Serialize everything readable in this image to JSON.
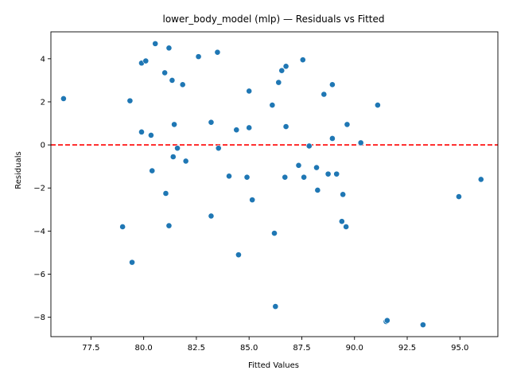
{
  "chart_data": {
    "type": "scatter",
    "title": "lower_body_model (mlp) — Residuals vs Fitted",
    "xlabel": "Fitted Values",
    "ylabel": "Residuals",
    "xlim": [
      75.6,
      96.8
    ],
    "ylim": [
      -8.9,
      5.25
    ],
    "xticks": [
      77.5,
      80.0,
      82.5,
      85.0,
      87.5,
      90.0,
      92.5,
      95.0
    ],
    "xtick_labels": [
      "77.5",
      "80.0",
      "82.5",
      "85.0",
      "87.5",
      "90.0",
      "92.5",
      "95.0"
    ],
    "yticks": [
      -8,
      -6,
      -4,
      -2,
      0,
      2,
      4
    ],
    "ytick_labels": [
      "−8",
      "−6",
      "−4",
      "−2",
      "0",
      "2",
      "4"
    ],
    "reference_line": {
      "y": 0,
      "color": "#ff0000",
      "style": "dashed"
    },
    "grid": false,
    "point_color": "#1f77b4",
    "points": [
      {
        "x": 76.2,
        "y": 2.15
      },
      {
        "x": 79.0,
        "y": -3.8
      },
      {
        "x": 79.35,
        "y": 2.05
      },
      {
        "x": 79.45,
        "y": -5.45
      },
      {
        "x": 79.9,
        "y": 3.8
      },
      {
        "x": 80.1,
        "y": 3.9
      },
      {
        "x": 79.9,
        "y": 0.6
      },
      {
        "x": 80.35,
        "y": 0.45
      },
      {
        "x": 80.4,
        "y": -1.2
      },
      {
        "x": 80.55,
        "y": 4.7
      },
      {
        "x": 81.0,
        "y": 3.35
      },
      {
        "x": 81.05,
        "y": -2.25
      },
      {
        "x": 81.2,
        "y": 4.5
      },
      {
        "x": 81.2,
        "y": -3.75
      },
      {
        "x": 81.35,
        "y": 3.0
      },
      {
        "x": 81.4,
        "y": -0.55
      },
      {
        "x": 81.45,
        "y": 0.95
      },
      {
        "x": 81.6,
        "y": -0.15
      },
      {
        "x": 81.85,
        "y": 2.8
      },
      {
        "x": 82.0,
        "y": -0.75
      },
      {
        "x": 82.6,
        "y": 4.1
      },
      {
        "x": 83.2,
        "y": 1.05
      },
      {
        "x": 83.2,
        "y": -3.3
      },
      {
        "x": 83.5,
        "y": 4.3
      },
      {
        "x": 83.55,
        "y": -0.15
      },
      {
        "x": 84.05,
        "y": -1.45
      },
      {
        "x": 84.4,
        "y": 0.7
      },
      {
        "x": 84.5,
        "y": -5.1
      },
      {
        "x": 84.9,
        "y": -1.5
      },
      {
        "x": 85.0,
        "y": 2.5
      },
      {
        "x": 85.0,
        "y": 0.8
      },
      {
        "x": 85.15,
        "y": -2.55
      },
      {
        "x": 86.1,
        "y": 1.85
      },
      {
        "x": 86.2,
        "y": -4.1
      },
      {
        "x": 86.25,
        "y": -7.5
      },
      {
        "x": 86.4,
        "y": 2.9
      },
      {
        "x": 86.55,
        "y": 3.45
      },
      {
        "x": 86.7,
        "y": -1.5
      },
      {
        "x": 86.75,
        "y": 0.85
      },
      {
        "x": 86.75,
        "y": 3.65
      },
      {
        "x": 87.35,
        "y": -0.95
      },
      {
        "x": 87.55,
        "y": 3.95
      },
      {
        "x": 87.6,
        "y": -1.5
      },
      {
        "x": 87.85,
        "y": -0.05
      },
      {
        "x": 88.2,
        "y": -1.05
      },
      {
        "x": 88.25,
        "y": -2.1
      },
      {
        "x": 88.55,
        "y": 2.35
      },
      {
        "x": 88.75,
        "y": -1.35
      },
      {
        "x": 88.95,
        "y": 0.3
      },
      {
        "x": 88.95,
        "y": 2.8
      },
      {
        "x": 89.15,
        "y": -1.35
      },
      {
        "x": 89.4,
        "y": -3.55
      },
      {
        "x": 89.45,
        "y": -2.3
      },
      {
        "x": 89.6,
        "y": -3.8
      },
      {
        "x": 89.65,
        "y": 0.95
      },
      {
        "x": 90.3,
        "y": 0.1
      },
      {
        "x": 91.1,
        "y": 1.85
      },
      {
        "x": 91.5,
        "y": -8.2
      },
      {
        "x": 91.55,
        "y": -8.15
      },
      {
        "x": 93.25,
        "y": -8.35
      },
      {
        "x": 94.95,
        "y": -2.4
      },
      {
        "x": 96.0,
        "y": -1.6
      }
    ]
  }
}
